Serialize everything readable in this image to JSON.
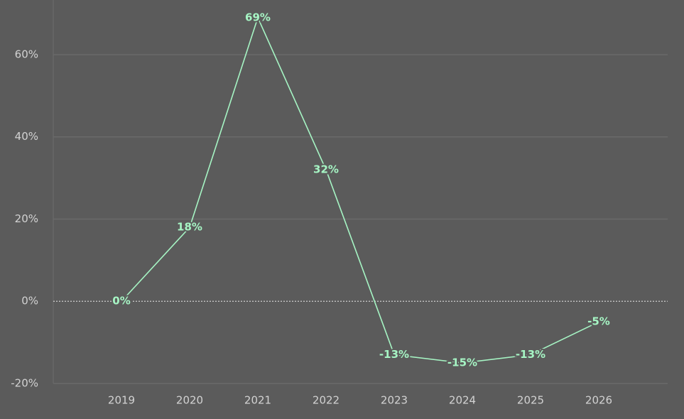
{
  "chart_data": {
    "type": "line",
    "categories": [
      "2019",
      "2020",
      "2021",
      "2022",
      "2023",
      "2024",
      "2025",
      "2026"
    ],
    "values": [
      0,
      18,
      69,
      32,
      -13,
      -15,
      -13,
      -5
    ],
    "value_labels": [
      "0%",
      "18%",
      "69%",
      "32%",
      "-13%",
      "-15%",
      "-13%",
      "-5%"
    ],
    "color": "#a6f5c4",
    "ylim": [
      -20,
      73.3
    ],
    "yticks": [
      {
        "value": -20,
        "label": "-20%"
      },
      {
        "value": 0,
        "label": "0%"
      },
      {
        "value": 20,
        "label": "20%"
      },
      {
        "value": 40,
        "label": "40%"
      },
      {
        "value": 60,
        "label": "60%"
      }
    ],
    "grid": true
  }
}
